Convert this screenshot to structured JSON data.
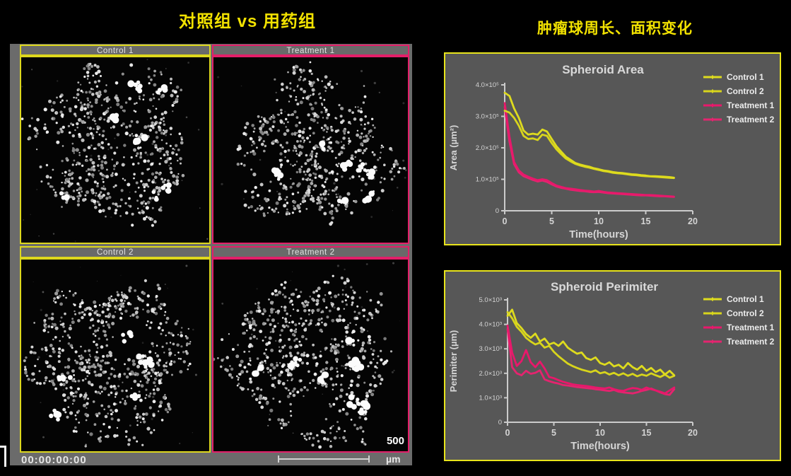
{
  "left_section": {
    "title": "对照组 vs 用药组",
    "timestamp": "00:00:00:00",
    "scale_value": "500",
    "scale_unit": "µm",
    "panels": [
      {
        "label": "Control 1",
        "border_color": "#ddd71d"
      },
      {
        "label": "Treatment 1",
        "border_color": "#e31f69"
      },
      {
        "label": "Control 2",
        "border_color": "#ddd71d"
      },
      {
        "label": "Treatment 2",
        "border_color": "#e31f69"
      }
    ]
  },
  "right_section": {
    "title": "肿瘤球周长、面积变化"
  },
  "colors": {
    "accent_yellow": "#e8e41c",
    "accent_pink": "#e31f69",
    "chart_bg": "#575757",
    "chart_text": "#d9d9d9",
    "axis": "#cbcbcb",
    "page_bg": "#000000",
    "montage_bg": "#6b6b6b"
  },
  "chart_data": [
    {
      "type": "line",
      "title": "Spheroid Area",
      "xlabel": "Time(hours)",
      "ylabel": "Area (µm²)",
      "xlim": [
        0,
        20
      ],
      "ylim": [
        0,
        400000
      ],
      "xticks": [
        0,
        5,
        10,
        15,
        20
      ],
      "yticks": [
        {
          "v": 0,
          "label": "0"
        },
        {
          "v": 100000,
          "label": "1.0×10⁵"
        },
        {
          "v": 200000,
          "label": "2.0×10⁵"
        },
        {
          "v": 300000,
          "label": "3.0×10⁵"
        },
        {
          "v": 400000,
          "label": "4.0×10⁵"
        }
      ],
      "legend_position": "right",
      "grid": false,
      "x": [
        0,
        0.5,
        1,
        1.5,
        2,
        2.5,
        3,
        3.5,
        4,
        4.5,
        5,
        5.5,
        6,
        6.5,
        7,
        7.5,
        8,
        8.5,
        9,
        9.5,
        10,
        10.5,
        11,
        11.5,
        12,
        12.5,
        13,
        13.5,
        14,
        14.5,
        15,
        15.5,
        16,
        16.5,
        17,
        17.5,
        18
      ],
      "series": [
        {
          "name": "Control 1",
          "color": "#dedb1e",
          "values": [
            375000,
            365000,
            325000,
            295000,
            255000,
            242000,
            245000,
            242000,
            258000,
            252000,
            228000,
            205000,
            188000,
            172000,
            162000,
            152000,
            147000,
            143000,
            140000,
            135000,
            132000,
            128000,
            126000,
            123000,
            121000,
            120000,
            118000,
            116000,
            115000,
            113000,
            112000,
            110000,
            110000,
            109000,
            108000,
            107000,
            105000
          ]
        },
        {
          "name": "Control 2",
          "color": "#d8d51c",
          "values": [
            318000,
            312000,
            295000,
            270000,
            238000,
            228000,
            230000,
            225000,
            242000,
            238000,
            215000,
            195000,
            180000,
            166000,
            157000,
            149000,
            144000,
            140000,
            137000,
            133000,
            130000,
            126000,
            124000,
            121000,
            119000,
            118000,
            116000,
            114000,
            113000,
            111000,
            110000,
            109000,
            108000,
            107000,
            106000,
            105000,
            104000
          ]
        },
        {
          "name": "Treatment 1",
          "color": "#e8186b",
          "values": [
            342000,
            235000,
            155000,
            128000,
            115000,
            108000,
            102000,
            97000,
            100000,
            97000,
            88000,
            80000,
            76000,
            72000,
            70000,
            68000,
            66000,
            64000,
            63000,
            61000,
            63000,
            60000,
            58000,
            57000,
            56000,
            55000,
            54000,
            53000,
            52000,
            51000,
            50000,
            50000,
            49000,
            48000,
            47000,
            46000,
            45000
          ]
        },
        {
          "name": "Treatment 2",
          "color": "#e4246f",
          "values": [
            330000,
            220000,
            148000,
            122000,
            110000,
            104000,
            98000,
            93000,
            96000,
            92000,
            84000,
            77000,
            73000,
            70000,
            67000,
            65000,
            63000,
            62000,
            60000,
            59000,
            60000,
            58000,
            56000,
            55000,
            54000,
            53000,
            52000,
            51000,
            50000,
            49000,
            49000,
            48000,
            47000,
            46000,
            46000,
            45000,
            44000
          ]
        }
      ]
    },
    {
      "type": "line",
      "title": "Spheroid Perimiter",
      "xlabel": "Time(hours)",
      "ylabel": "Perimiter (µm)",
      "xlim": [
        0,
        20
      ],
      "ylim": [
        0,
        5000
      ],
      "xticks": [
        0,
        5,
        10,
        15,
        20
      ],
      "yticks": [
        {
          "v": 0,
          "label": "0"
        },
        {
          "v": 1000,
          "label": "1.0×10³"
        },
        {
          "v": 2000,
          "label": "2.0×10³"
        },
        {
          "v": 3000,
          "label": "3.0×10³"
        },
        {
          "v": 4000,
          "label": "4.0×10³"
        },
        {
          "v": 5000,
          "label": "5.0×10³"
        }
      ],
      "legend_position": "right",
      "grid": false,
      "x": [
        0,
        0.5,
        1,
        1.5,
        2,
        2.5,
        3,
        3.5,
        4,
        4.5,
        5,
        5.5,
        6,
        6.5,
        7,
        7.5,
        8,
        8.5,
        9,
        9.5,
        10,
        10.5,
        11,
        11.5,
        12,
        12.5,
        13,
        13.5,
        14,
        14.5,
        15,
        15.5,
        16,
        16.5,
        17,
        17.5,
        18
      ],
      "series": [
        {
          "name": "Control 1",
          "color": "#dedb1e",
          "values": [
            4350,
            4600,
            4050,
            3850,
            3600,
            3450,
            3620,
            3300,
            3420,
            3180,
            3250,
            3120,
            3300,
            3050,
            2920,
            2800,
            2850,
            2620,
            2550,
            2650,
            2420,
            2350,
            2450,
            2280,
            2350,
            2200,
            2420,
            2250,
            2150,
            2300,
            2100,
            2220,
            2050,
            2150,
            1950,
            2100,
            1920
          ]
        },
        {
          "name": "Control 2",
          "color": "#d8d51c",
          "values": [
            4500,
            4250,
            3900,
            3700,
            3450,
            3300,
            3180,
            3250,
            3050,
            3120,
            2880,
            2700,
            2550,
            2400,
            2300,
            2220,
            2150,
            2100,
            2050,
            2120,
            2000,
            2050,
            1950,
            2020,
            1920,
            2000,
            1900,
            1980,
            1880,
            1950,
            1900,
            2000,
            1920,
            1850,
            1950,
            1820,
            1900
          ]
        },
        {
          "name": "Treatment 1",
          "color": "#e8186b",
          "values": [
            3950,
            2850,
            2300,
            2500,
            2950,
            2450,
            2250,
            2480,
            2200,
            1850,
            1800,
            1720,
            1650,
            1600,
            1550,
            1520,
            1500,
            1480,
            1450,
            1420,
            1400,
            1380,
            1420,
            1350,
            1300,
            1280,
            1350,
            1400,
            1380,
            1320,
            1420,
            1350,
            1300,
            1250,
            1180,
            1300,
            1420
          ]
        },
        {
          "name": "Treatment 2",
          "color": "#e4246f",
          "values": [
            3800,
            2250,
            2000,
            1920,
            2100,
            1980,
            2020,
            2120,
            1750,
            1680,
            1620,
            1580,
            1520,
            1500,
            1470,
            1440,
            1420,
            1400,
            1380,
            1350,
            1330,
            1300,
            1280,
            1320,
            1250,
            1220,
            1200,
            1180,
            1220,
            1280,
            1320,
            1380,
            1300,
            1220,
            1150,
            1120,
            1350
          ]
        }
      ]
    }
  ]
}
